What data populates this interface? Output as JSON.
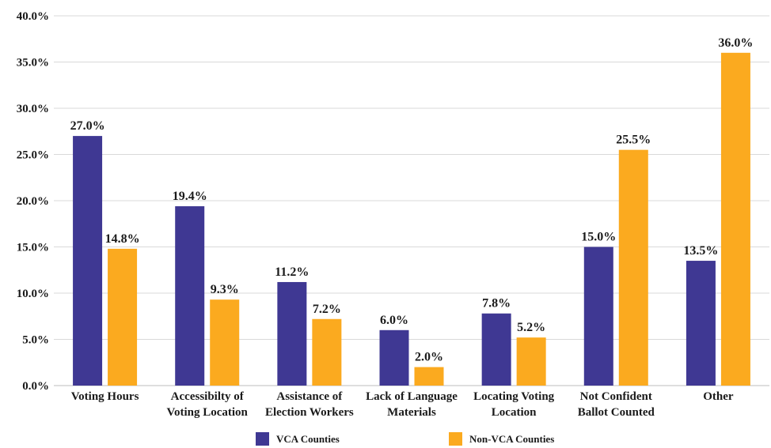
{
  "chart_data": {
    "type": "bar",
    "categories": [
      [
        "Voting Hours"
      ],
      [
        "Accessibilty of",
        "Voting Location"
      ],
      [
        "Assistance of",
        "Election Workers"
      ],
      [
        "Lack of Language",
        "Materials"
      ],
      [
        "Locating Voting",
        "Location"
      ],
      [
        "Not Confident",
        "Ballot Counted"
      ],
      [
        "Other"
      ]
    ],
    "series": [
      {
        "name": "VCA Counties",
        "color": "#3f3893",
        "values": [
          27.0,
          19.4,
          11.2,
          6.0,
          7.8,
          15.0,
          13.5
        ],
        "labels": [
          "27.0%",
          "19.4%",
          "11.2%",
          "6.0%",
          "7.8%",
          "15.0%",
          "13.5%"
        ]
      },
      {
        "name": "Non-VCA Counties",
        "color": "#fbaa1f",
        "values": [
          14.8,
          9.3,
          7.2,
          2.0,
          5.2,
          25.5,
          36.0
        ],
        "labels": [
          "14.8%",
          "9.3%",
          "7.2%",
          "2.0%",
          "5.2%",
          "25.5%",
          "36.0%"
        ]
      }
    ],
    "yticks": [
      0,
      5,
      10,
      15,
      20,
      25,
      30,
      35,
      40
    ],
    "ytick_labels": [
      "0.0%",
      "5.0%",
      "10.0%",
      "15.0%",
      "20.0%",
      "25.0%",
      "30.0%",
      "35.0%",
      "40.0%"
    ],
    "ylim": [
      0,
      40
    ],
    "grid": true,
    "legend_position": "bottom-center"
  }
}
